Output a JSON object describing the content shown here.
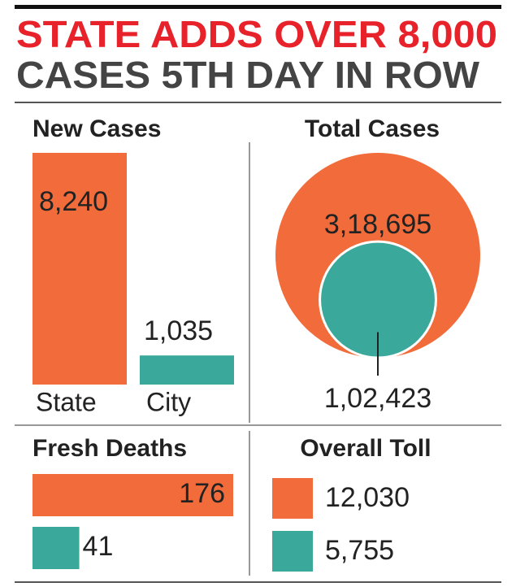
{
  "header": {
    "title": "STATE ADDS OVER 8,000",
    "subtitle": "CASES 5TH DAY IN ROW"
  },
  "chart_data": [
    {
      "type": "bar",
      "title": "New Cases",
      "categories": [
        "State",
        "City"
      ],
      "values": [
        8240,
        1035
      ],
      "value_labels": [
        "8,240",
        "1,035"
      ],
      "colors": [
        "#f26b3a",
        "#3aa89a"
      ]
    },
    {
      "type": "bubble",
      "title": "Total Cases",
      "values": [
        318695,
        102423
      ],
      "value_labels": [
        "3,18,695",
        "1,02,423"
      ],
      "colors": [
        "#f26b3a",
        "#3aa89a"
      ]
    },
    {
      "type": "hbar",
      "title": "Fresh Deaths",
      "values": [
        176,
        41
      ],
      "colors": [
        "#f26b3a",
        "#3aa89a"
      ]
    },
    {
      "type": "squares",
      "title": "Overall Toll",
      "values": [
        12030,
        5755
      ],
      "value_labels": [
        "12,030",
        "5,755"
      ],
      "colors": [
        "#f26b3a",
        "#3aa89a"
      ]
    }
  ]
}
